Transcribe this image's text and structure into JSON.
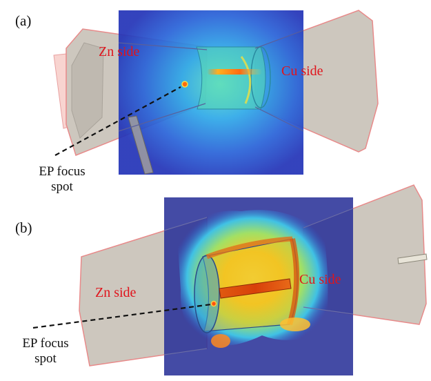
{
  "panels": [
    {
      "label": "(a)",
      "zn_label": "Zn side",
      "cu_label": "Cu side",
      "annotation_line1": "EP focus",
      "annotation_line2": "spot"
    },
    {
      "label": "(b)",
      "zn_label": "Zn side",
      "cu_label": "Cu side",
      "annotation_line1": "EP focus",
      "annotation_line2": "spot"
    }
  ],
  "colors": {
    "label_red": "#e0141c",
    "cone_fill": "#cfc9c0",
    "cone_edge": "#e88a8a",
    "overlay_blue": "#2a3cc4",
    "overlay_dark": "#1f2a8c"
  }
}
